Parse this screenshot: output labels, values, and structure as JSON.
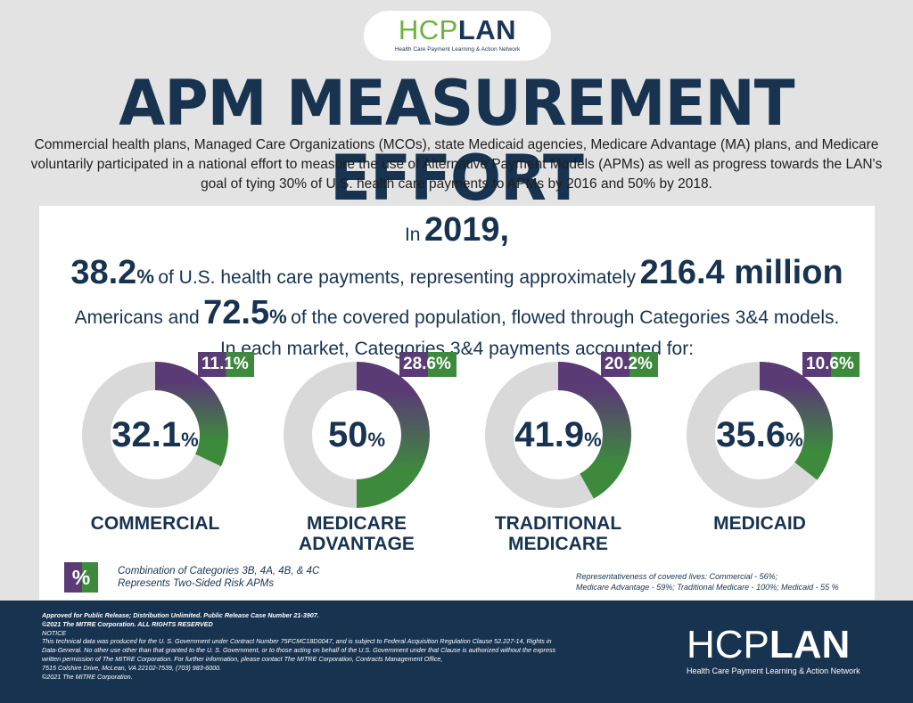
{
  "logo": {
    "hc": "HCP",
    "lan": "LAN",
    "tagline": "Health Care Payment Learning & Action Network"
  },
  "title": "APM MEASUREMENT EFFORT",
  "intro": "Commercial health plans, Managed Care Organizations (MCOs), state Medicaid agencies, Medicare Advantage (MA) plans, and Medicare voluntarily participated in a national effort to measure the use of Alternative Payment Models (APMs) as well as progress towards the LAN's goal of tying 30% of U.S. health care payments to APMs by 2016 and 50% by 2018.",
  "headline": {
    "in": "In",
    "year": "2019,",
    "pct_payments": "38.2",
    "pct_sign": "%",
    "text_a": "of U.S. health care payments, representing approximately",
    "americans": "216.4 million",
    "text_b": "Americans and",
    "pct_pop": "72.5",
    "text_c": "of the covered population, flowed through Categories 3&4 models.",
    "subline": "In each market, Categories 3&4 payments accounted for:"
  },
  "chart_data": {
    "type": "pie",
    "title": "In each market, Categories 3&4 payments accounted for:",
    "categories": [
      "COMMERCIAL",
      "MEDICARE ADVANTAGE",
      "TRADITIONAL MEDICARE",
      "MEDICAID"
    ],
    "series": [
      {
        "name": "Categories 3&4 payments (%)",
        "values": [
          32.1,
          50,
          41.9,
          35.6
        ]
      },
      {
        "name": "Two-Sided Risk APMs (3B, 4A, 4B, 4C) (%)",
        "values": [
          11.1,
          28.6,
          20.2,
          10.6
        ]
      }
    ],
    "markets": [
      {
        "label_lines": [
          "COMMERCIAL"
        ],
        "center": "32.1",
        "value": 32.1,
        "badge": "11.1%"
      },
      {
        "label_lines": [
          "MEDICARE",
          "ADVANTAGE"
        ],
        "center": "50",
        "value": 50,
        "badge": "28.6%"
      },
      {
        "label_lines": [
          "TRADITIONAL",
          "MEDICARE"
        ],
        "center": "41.9",
        "value": 41.9,
        "badge": "20.2%"
      },
      {
        "label_lines": [
          "MEDICAID"
        ],
        "center": "35.6",
        "value": 35.6,
        "badge": "10.6%"
      }
    ],
    "pct_symbol": "%"
  },
  "legend": {
    "symbol": "%",
    "line1": "Combination of Categories 3B, 4A, 4B, & 4C",
    "line2": "Represents Two-Sided Risk APMs"
  },
  "representativeness": {
    "line1": "Representativeness of covered lives: Commercial - 56%;",
    "line2": "Medicare Advantage - 59%; Traditional Medicare - 100%; Medicaid - 55 %"
  },
  "footer": {
    "lines": [
      "Approved for Public Release; Distribution Unlimited. Public Release Case Number 21-3907.",
      "©2021 The MITRE Corporation. ALL RIGHTS RESERVED",
      "NOTICE",
      "This technical data was produced for the U. S. Government under Contract Number 75FCMC18D0047, and is subject to Federal Acquisition Regulation Clause 52.227-14, Rights in",
      "Data-General. No other use other than that granted to the U. S. Government, or to those acting on behalf of the U.S. Government under that Clause is authorized without the express",
      "written permission of The MITRE Corporation. For further information, please contact The MITRE Corporation, Contracts Management Office,",
      "7515 Colshire Drive, McLean, VA  22102-7539, (703) 983-6000.",
      "©2021 The MITRE Corporation."
    ],
    "logo_hc": "HCP",
    "logo_lan": "LAN",
    "logo_tagline": "Health Care Payment Learning & Action Network"
  },
  "colors": {
    "navy": "#173350",
    "purple": "#5a3b75",
    "green": "#3d8a3d",
    "ring": "#d9d9d9",
    "logo_green": "#6bb23c"
  }
}
